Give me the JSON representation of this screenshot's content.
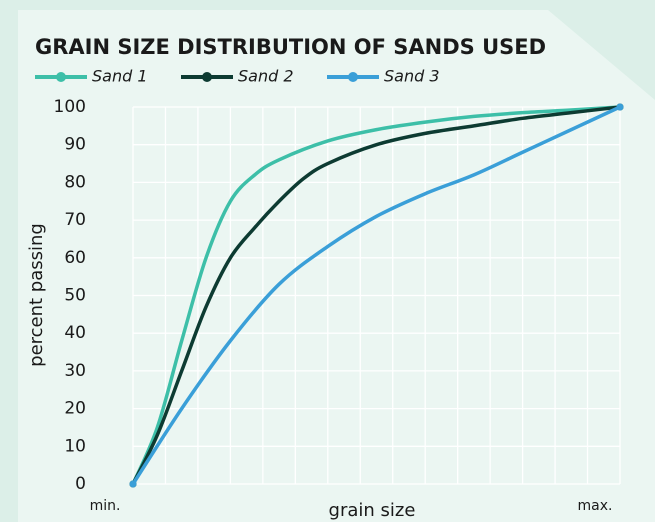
{
  "chart_data": {
    "type": "line",
    "title": "GRAIN SIZE DISTRIBUTION OF SANDS USED",
    "xlabel": "grain size",
    "ylabel": "percent passing",
    "xlim": [
      0,
      1
    ],
    "xticks": [
      {
        "value": 0,
        "label": "min."
      },
      {
        "value": 1,
        "label": "max."
      }
    ],
    "ylim": [
      0,
      100
    ],
    "yticks": [
      0,
      10,
      20,
      30,
      40,
      50,
      60,
      70,
      80,
      90,
      100
    ],
    "grid": true,
    "legend": "top-left",
    "series": [
      {
        "name": "Sand 1",
        "color": "#3dbfa8",
        "x": [
          0,
          0.05,
          0.1,
          0.15,
          0.2,
          0.25,
          0.3,
          0.4,
          0.5,
          0.6,
          0.7,
          0.8,
          0.9,
          1
        ],
        "values": [
          0,
          15,
          38,
          60,
          75,
          82,
          86,
          91,
          94,
          96,
          97.5,
          98.5,
          99.2,
          100
        ]
      },
      {
        "name": "Sand 2",
        "color": "#0d3b32",
        "x": [
          0,
          0.05,
          0.1,
          0.15,
          0.2,
          0.25,
          0.3,
          0.35,
          0.4,
          0.5,
          0.6,
          0.7,
          0.8,
          0.9,
          1
        ],
        "values": [
          0,
          13,
          30,
          47,
          60,
          68,
          75,
          81,
          85,
          90,
          93,
          95,
          97,
          98.5,
          100
        ]
      },
      {
        "name": "Sand 3",
        "color": "#3a9fd8",
        "x": [
          0,
          0.1,
          0.2,
          0.3,
          0.4,
          0.5,
          0.6,
          0.7,
          0.8,
          0.9,
          1
        ],
        "values": [
          0,
          20,
          38,
          53,
          63,
          71,
          77,
          82,
          88,
          94,
          100
        ]
      }
    ]
  }
}
